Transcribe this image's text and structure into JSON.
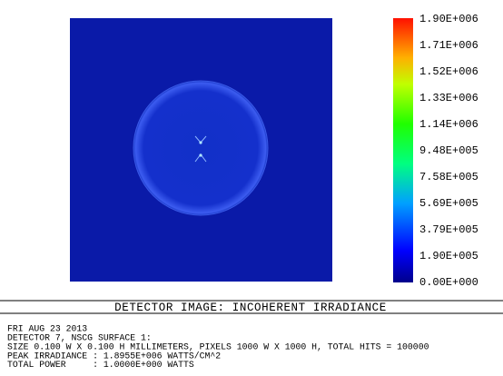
{
  "colorbar": {
    "labels": [
      "1.90E+006",
      "1.71E+006",
      "1.52E+006",
      "1.33E+006",
      "1.14E+006",
      "9.48E+005",
      "7.58E+005",
      "5.69E+005",
      "3.79E+005",
      "1.90E+005",
      "0.00E+000"
    ]
  },
  "title": "DETECTOR IMAGE: INCOHERENT IRRADIANCE",
  "info": [
    "FRI AUG 23 2013",
    "DETECTOR 7, NSCG SURFACE 1:",
    "SIZE 0.100 W X 0.100 H MILLIMETERS, PIXELS 1000 W X 1000 H, TOTAL HITS = 100000",
    "PEAK IRRADIANCE : 1.8955E+006 WATTS/CM^2",
    "TOTAL POWER     : 1.0000E+000 WATTS"
  ]
}
